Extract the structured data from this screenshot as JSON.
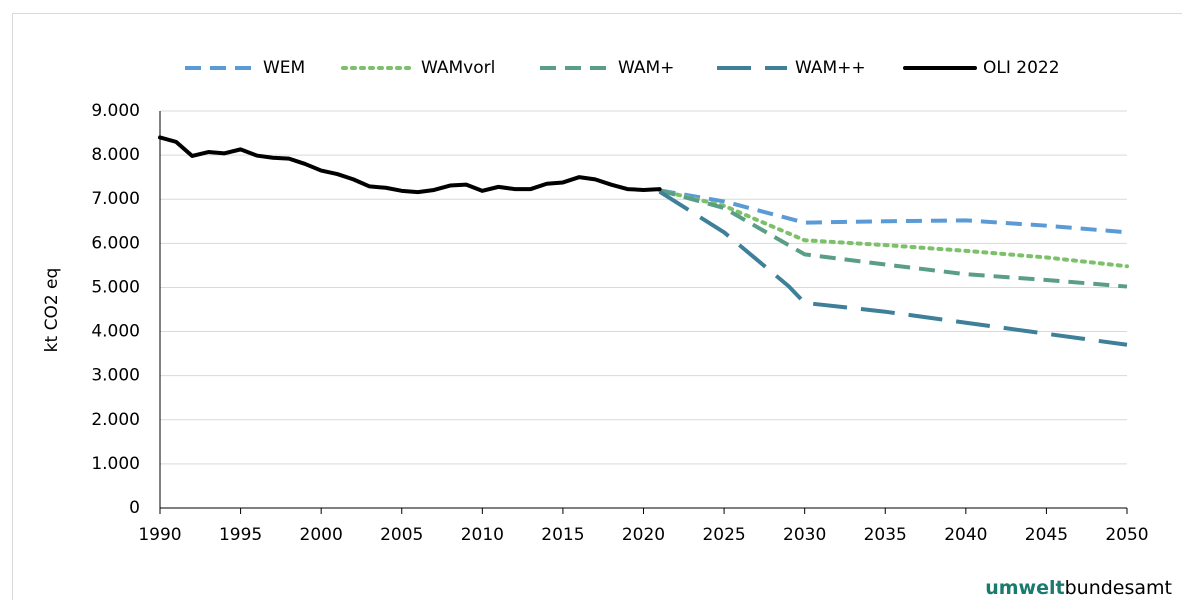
{
  "chart_data": {
    "type": "line",
    "y_label": "kt CO2 eq",
    "xlim": [
      1990,
      2050
    ],
    "ylim": [
      0,
      9000
    ],
    "xticks": [
      1990,
      1995,
      2000,
      2005,
      2010,
      2015,
      2020,
      2025,
      2030,
      2035,
      2040,
      2045,
      2050
    ],
    "yticks": [
      0,
      {
        "value": 1000,
        "label": "1.000"
      },
      {
        "value": 2000,
        "label": "2.000"
      },
      {
        "value": 3000,
        "label": "3.000"
      },
      {
        "value": 4000,
        "label": "4.000"
      },
      {
        "value": 5000,
        "label": "5.000"
      },
      {
        "value": 6000,
        "label": "6.000"
      },
      {
        "value": 7000,
        "label": "7.000"
      },
      {
        "value": 8000,
        "label": "8.000"
      },
      {
        "value": 9000,
        "label": "9.000"
      }
    ],
    "grid": true,
    "legend": "top",
    "series": [
      {
        "name": "WEM",
        "color": "#5b9bd5",
        "dash": "dash",
        "x": [
          2021,
          2025,
          2030,
          2035,
          2040,
          2045,
          2050
        ],
        "values": [
          7200,
          6950,
          6470,
          6500,
          6520,
          6400,
          6250
        ]
      },
      {
        "name": "WAMvorl",
        "color": "#7cc06a",
        "dash": "dot",
        "x": [
          2021,
          2025,
          2030,
          2035,
          2040,
          2045,
          2050
        ],
        "values": [
          7200,
          6850,
          6070,
          5960,
          5830,
          5680,
          5480
        ]
      },
      {
        "name": "WAM+",
        "color": "#5a9e85",
        "dash": "dash",
        "x": [
          2021,
          2025,
          2030,
          2035,
          2040,
          2045,
          2050
        ],
        "values": [
          7200,
          6800,
          5750,
          5520,
          5300,
          5170,
          5020
        ]
      },
      {
        "name": "WAM++",
        "color": "#3e7f99",
        "dash": "long-dash",
        "x": [
          2021,
          2025,
          2029,
          2030,
          2035,
          2040,
          2045,
          2050
        ],
        "values": [
          7170,
          6250,
          5030,
          4650,
          4450,
          4200,
          3950,
          3700
        ]
      },
      {
        "name": "OLI 2022",
        "color": "#000000",
        "dash": "solid",
        "x": [
          1990,
          1991,
          1992,
          1993,
          1994,
          1995,
          1996,
          1997,
          1998,
          1999,
          2000,
          2001,
          2002,
          2003,
          2004,
          2005,
          2006,
          2007,
          2008,
          2009,
          2010,
          2011,
          2012,
          2013,
          2014,
          2015,
          2016,
          2017,
          2018,
          2019,
          2020,
          2021
        ],
        "values": [
          8400,
          8300,
          7980,
          8070,
          8040,
          8130,
          7990,
          7940,
          7920,
          7800,
          7650,
          7570,
          7450,
          7290,
          7260,
          7190,
          7160,
          7210,
          7310,
          7330,
          7190,
          7280,
          7230,
          7230,
          7350,
          7380,
          7500,
          7450,
          7330,
          7230,
          7210,
          7230
        ]
      }
    ]
  },
  "logo": {
    "bold": "umwelt",
    "rest": "bundesamt"
  }
}
